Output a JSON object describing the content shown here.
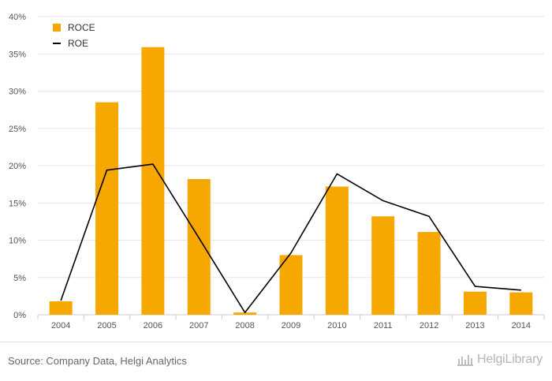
{
  "chart_data": {
    "type": "bar",
    "categories": [
      "2004",
      "2005",
      "2006",
      "2007",
      "2008",
      "2009",
      "2010",
      "2011",
      "2012",
      "2013",
      "2014"
    ],
    "series": [
      {
        "name": "ROCE",
        "type": "bar",
        "color": "#F7A800",
        "values": [
          1.8,
          28.5,
          35.9,
          18.2,
          0.3,
          8.0,
          17.2,
          13.2,
          11.1,
          3.1,
          3.0
        ]
      },
      {
        "name": "ROE",
        "type": "line",
        "color": "#000000",
        "values": [
          1.9,
          19.4,
          20.2,
          10.3,
          0.3,
          8.3,
          18.9,
          15.3,
          13.2,
          3.8,
          3.3
        ]
      }
    ],
    "ylim": [
      0,
      40
    ],
    "yticks": [
      0,
      5,
      10,
      15,
      20,
      25,
      30,
      35,
      40
    ],
    "ytick_labels": [
      "0%",
      "5%",
      "10%",
      "15%",
      "20%",
      "25%",
      "30%",
      "35%",
      "40%"
    ],
    "grid": true,
    "legend_position": "top-left",
    "legend": [
      "ROCE",
      "ROE"
    ]
  },
  "footer": {
    "source": "Source: Company Data, Helgi Analytics",
    "brand": "HelgiLibrary"
  }
}
